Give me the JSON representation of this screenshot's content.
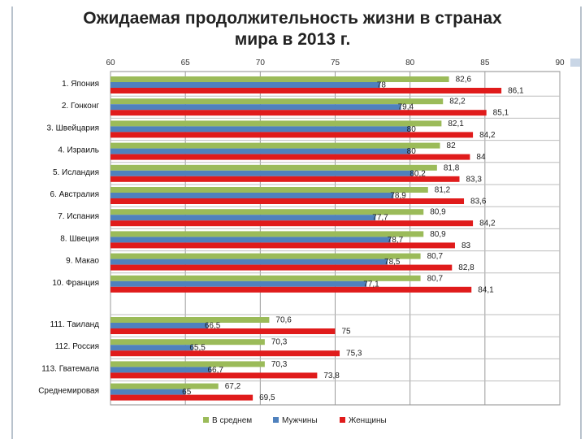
{
  "title_line1": "Ожидаемая продолжительность жизни в странах",
  "title_line2": "мира в 2013 г.",
  "chart_data": {
    "type": "bar",
    "orientation": "horizontal",
    "title": "Ожидаемая продолжительность жизни в странах мира в 2013 г.",
    "xlim": [
      60,
      90
    ],
    "ticks": [
      60,
      65,
      70,
      75,
      80,
      85,
      90
    ],
    "grid": true,
    "legend_position": "bottom",
    "categories": [
      "1. Япония",
      "2. Гонконг",
      "3. Швейцария",
      "4. Израиль",
      "5. Исландия",
      "6. Австралия",
      "7. Испания",
      "8. Швеция",
      "9. Макао",
      "10. Франция",
      "111. Таиланд",
      "112. Россия",
      "113. Гватемала",
      "Среднемировая"
    ],
    "series": [
      {
        "name": "В среднем",
        "color": "#9bbb59",
        "values": [
          82.6,
          82.2,
          82.1,
          82,
          81.8,
          81.2,
          80.9,
          80.9,
          80.7,
          80.7,
          70.6,
          70.3,
          70.3,
          67.2
        ],
        "labels": [
          "82,6",
          "82,2",
          "82,1",
          "82",
          "81,8",
          "81,2",
          "80,9",
          "80,9",
          "80,7",
          "80,7",
          "70,6",
          "70,3",
          "70,3",
          "67,2"
        ]
      },
      {
        "name": "Мужчины",
        "color": "#4f81bd",
        "values": [
          78,
          79.4,
          80,
          80,
          80.2,
          78.9,
          77.7,
          78.7,
          78.5,
          77.1,
          66.5,
          65.5,
          66.7,
          65
        ],
        "labels": [
          "78",
          "79,4",
          "80",
          "80",
          "80,2",
          "78,9",
          "77,7",
          "78,7",
          "78,5",
          "77,1",
          "66,5",
          "65,5",
          "66,7",
          "65"
        ]
      },
      {
        "name": "Женщины",
        "color": "#e01b1b",
        "values": [
          86.1,
          85.1,
          84.2,
          84,
          83.3,
          83.6,
          84.2,
          83,
          82.8,
          84.1,
          75,
          75.3,
          73.8,
          69.5
        ],
        "labels": [
          "86,1",
          "85,1",
          "84,2",
          "84",
          "83,3",
          "83,6",
          "84,2",
          "83",
          "82,8",
          "84,1",
          "75",
          "75,3",
          "73,8",
          "69,5"
        ]
      }
    ]
  }
}
